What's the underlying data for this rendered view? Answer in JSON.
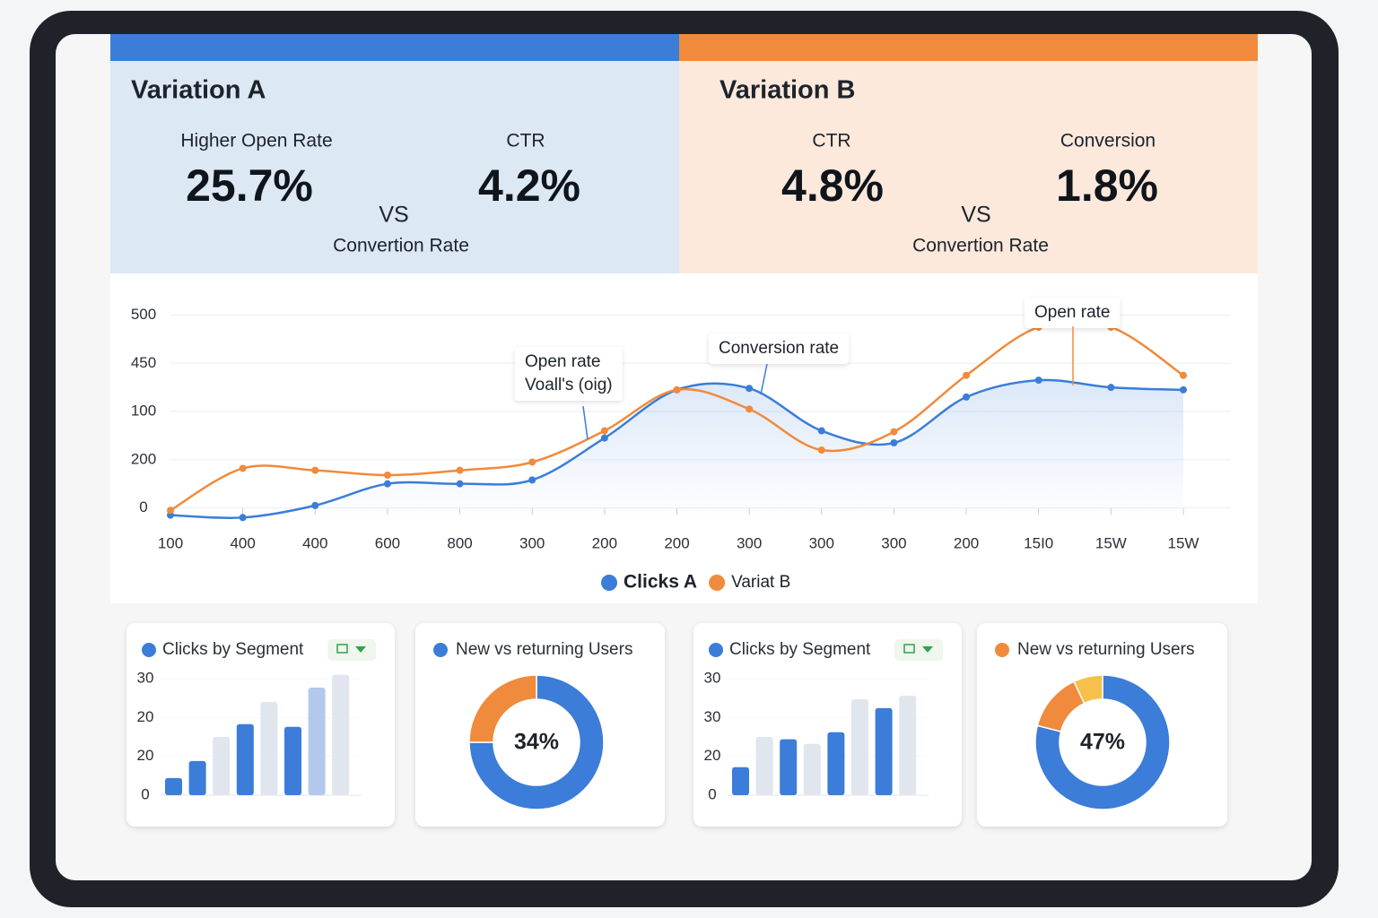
{
  "panels": [
    {
      "title": "Variation A",
      "metrics": [
        {
          "label": "Higher Open Rate",
          "value": "25.7%"
        },
        {
          "label": "CTR",
          "value": "4.2%"
        }
      ],
      "vs": "VS",
      "footer": "Convertion Rate"
    },
    {
      "title": "Variation B",
      "metrics": [
        {
          "label": "CTR",
          "value": "4.8%"
        },
        {
          "label": "Conversion",
          "value": "1.8%"
        }
      ],
      "vs": "VS",
      "footer": "Convertion Rate"
    }
  ],
  "chart_data": [
    {
      "type": "line",
      "categories": [
        "100",
        "400",
        "400",
        "600",
        "800",
        "300",
        "200",
        "200",
        "300",
        "300",
        "300",
        "200",
        "15I0",
        "15W",
        "15W"
      ],
      "series": [
        {
          "name": "Clicks A",
          "color": "#3b7dd8",
          "values": [
            -0.15,
            -0.2,
            0.05,
            0.5,
            0.5,
            0.58,
            1.45,
            2.45,
            2.48,
            1.6,
            1.35,
            2.3,
            2.65,
            2.5,
            2.45
          ]
        },
        {
          "name": "Variat B",
          "color": "#f08a3c",
          "values": [
            -0.05,
            0.82,
            0.78,
            0.68,
            0.78,
            0.95,
            1.6,
            2.45,
            2.05,
            1.2,
            1.58,
            2.75,
            3.75,
            3.75,
            2.75
          ]
        }
      ],
      "ylim": [
        -0.25,
        4.4
      ],
      "yticks": [
        {
          "value": 0,
          "label": "0"
        },
        {
          "value": 1,
          "label": "200"
        },
        {
          "value": 2,
          "label": "100"
        },
        {
          "value": 3,
          "label": "450"
        },
        {
          "value": 4,
          "label": "500"
        }
      ],
      "grid": true,
      "annotations": [
        {
          "lines": [
            "Open rate",
            "Voall's (oig)"
          ]
        },
        {
          "lines": [
            "Conversion rate"
          ]
        },
        {
          "lines": [
            "Open rate"
          ]
        }
      ]
    },
    {
      "type": "bar",
      "title": "Clicks by Segment",
      "values": [
        0.44,
        0.88,
        1.5,
        1.83,
        2.4,
        1.76,
        2.77,
        3.1
      ],
      "colors": [
        "#3b7dd8",
        "#3b7dd8",
        "#e1e5ee",
        "#3b7dd8",
        "#e1e5ee",
        "#3b7dd8",
        "#b3c9ec",
        "#e1e5ee"
      ],
      "ylim": [
        0,
        3.3
      ],
      "yticks": [
        {
          "value": 0,
          "label": "0"
        },
        {
          "value": 1,
          "label": "20"
        },
        {
          "value": 2,
          "label": "20"
        },
        {
          "value": 3,
          "label": "30"
        }
      ]
    },
    {
      "type": "pie",
      "title": "New vs returning Users",
      "center_label": "34%",
      "values": [
        75,
        25
      ],
      "colors": [
        "#3b7dd8",
        "#f08a3c"
      ]
    },
    {
      "type": "bar",
      "title": "Clicks by Segment",
      "values": [
        0.72,
        1.5,
        1.44,
        1.32,
        1.62,
        2.47,
        2.24,
        2.56
      ],
      "colors": [
        "#3b7dd8",
        "#e1e5ee",
        "#3b7dd8",
        "#e1e5ee",
        "#3b7dd8",
        "#e1e5ee",
        "#3b7dd8",
        "#e1e5ee"
      ],
      "ylim": [
        0,
        3.3
      ],
      "yticks": [
        {
          "value": 0,
          "label": "0"
        },
        {
          "value": 1,
          "label": "20"
        },
        {
          "value": 2,
          "label": "30"
        },
        {
          "value": 3,
          "label": "30"
        }
      ]
    },
    {
      "type": "pie",
      "title": "New vs returning Users",
      "center_label": "47%",
      "values": [
        79,
        14,
        7
      ],
      "colors": [
        "#3b7dd8",
        "#f08a3c",
        "#f7c04a"
      ]
    }
  ]
}
